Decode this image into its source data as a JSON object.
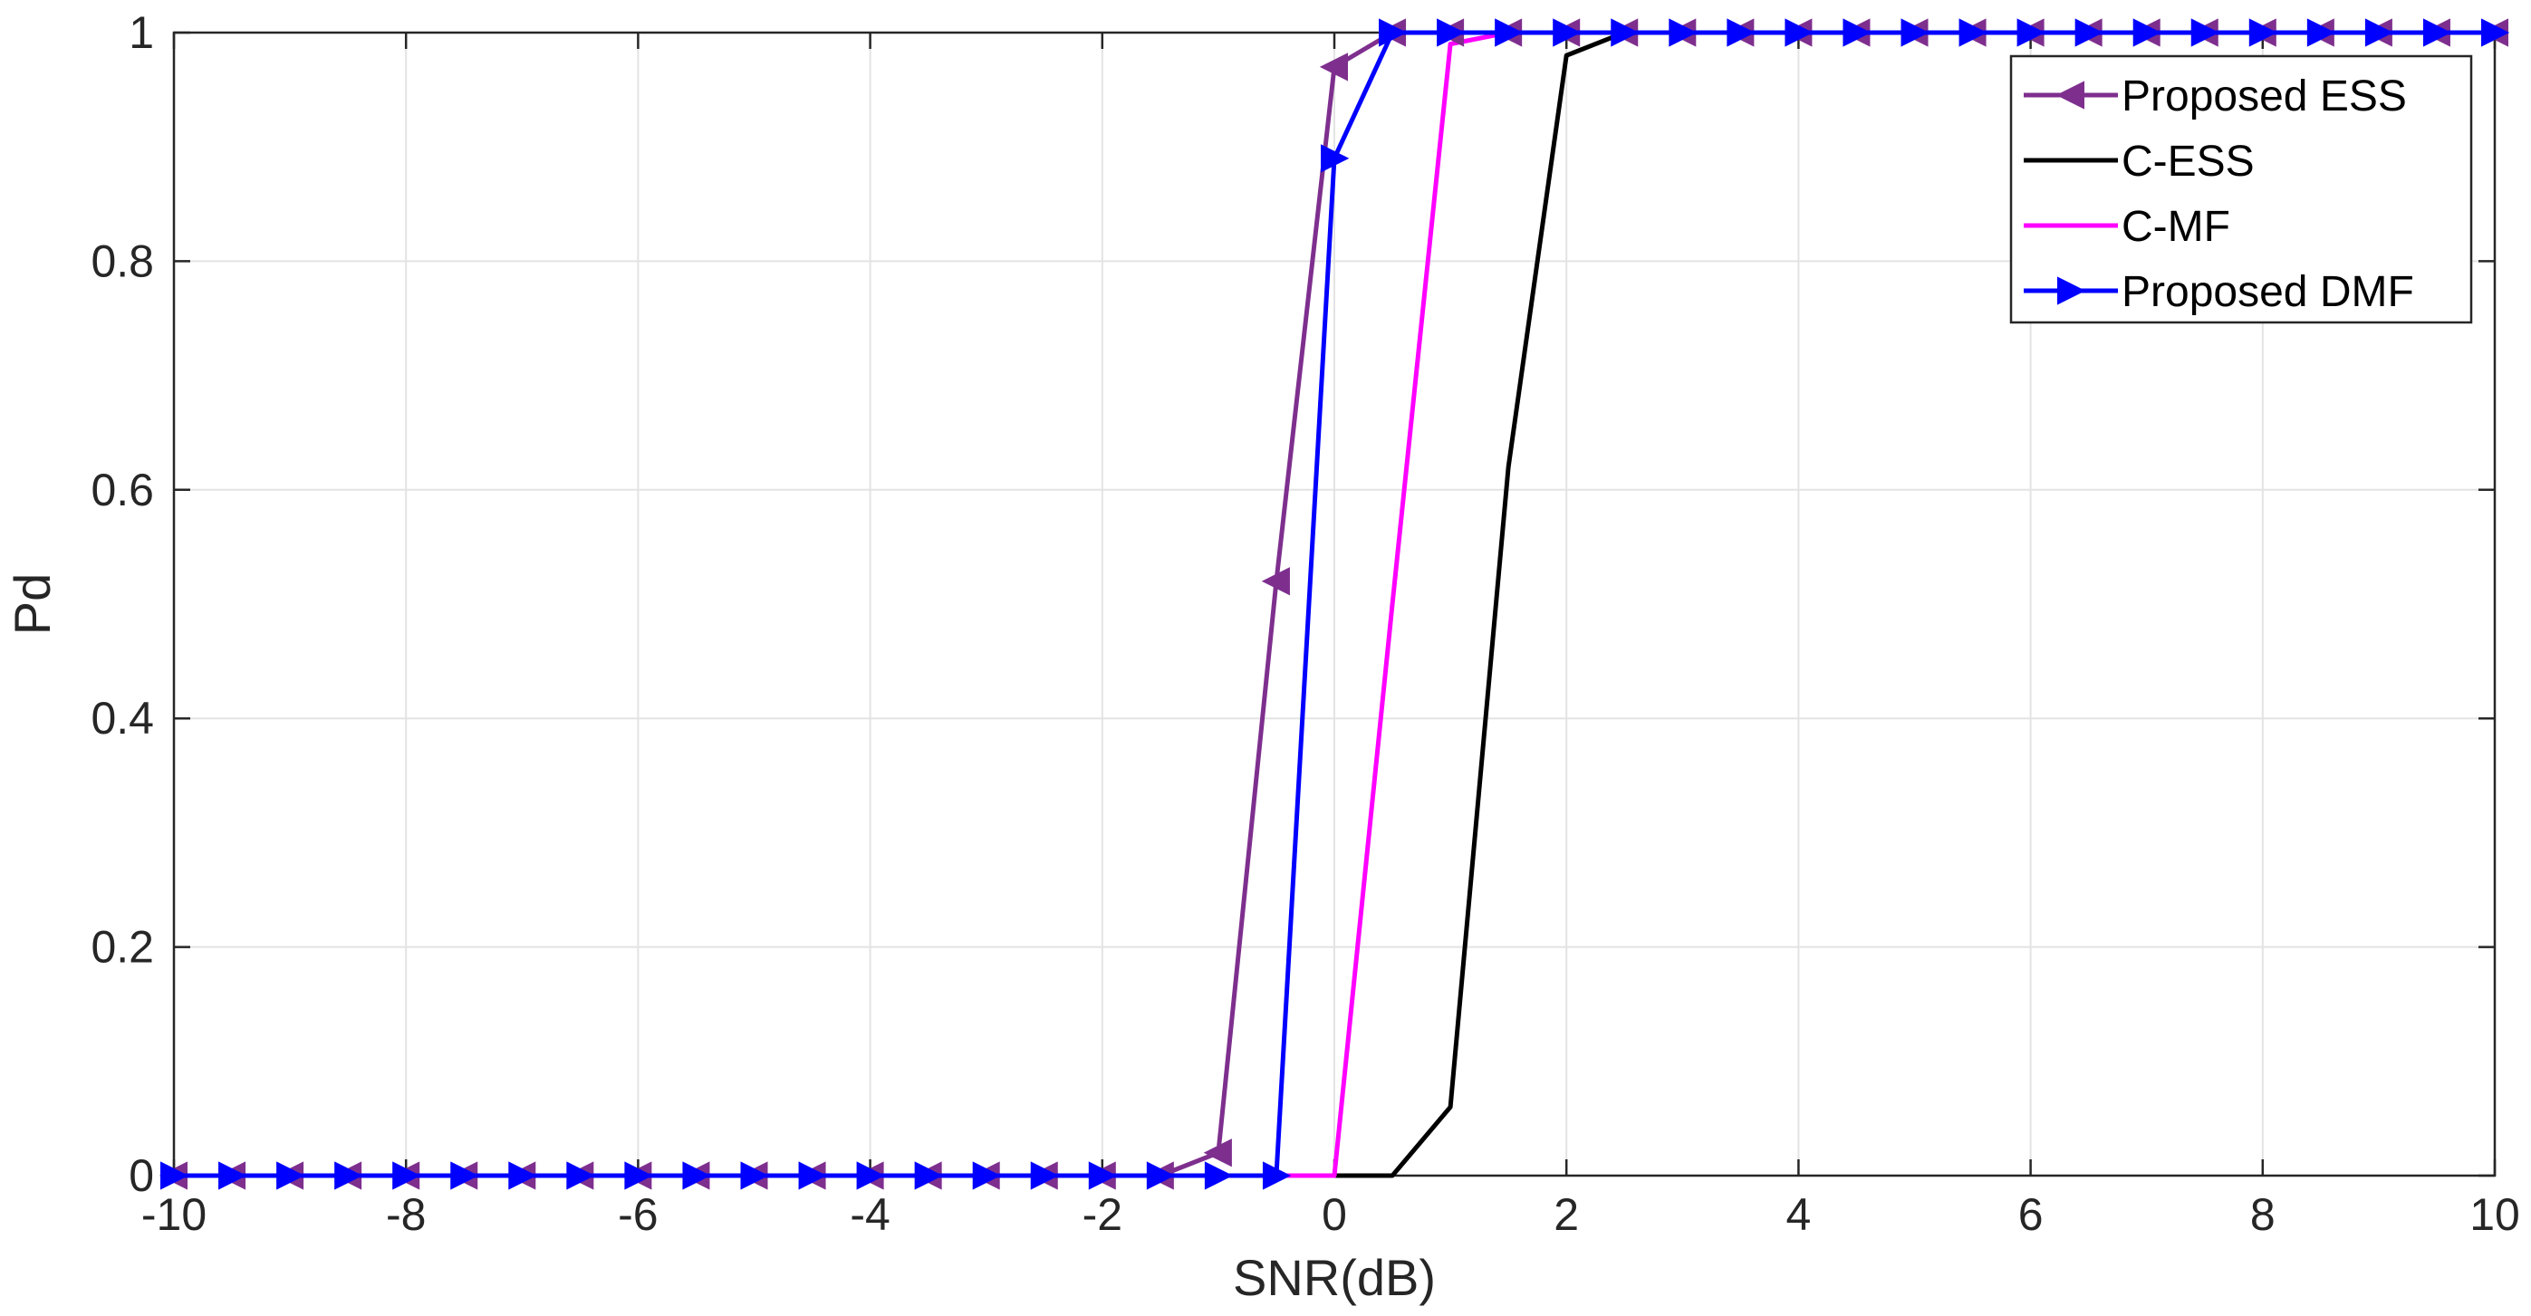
{
  "chart_data": {
    "type": "line",
    "title": "",
    "xlabel": "SNR(dB)",
    "ylabel": "Pd",
    "xlim": [
      -10,
      10
    ],
    "ylim": [
      0,
      1
    ],
    "xticks": [
      -10,
      -8,
      -6,
      -4,
      -2,
      0,
      2,
      4,
      6,
      8,
      10
    ],
    "yticks": [
      0,
      0.2,
      0.4,
      0.6,
      0.8,
      1
    ],
    "xtick_labels": [
      "-10",
      "-8",
      "-6",
      "-4",
      "-2",
      "0",
      "2",
      "4",
      "6",
      "8",
      "10"
    ],
    "ytick_labels": [
      "0",
      "0.2",
      "0.4",
      "0.6",
      "0.8",
      "1"
    ],
    "grid": true,
    "legend_position": "top-right",
    "x": [
      -10,
      -9.5,
      -9,
      -8.5,
      -8,
      -7.5,
      -7,
      -6.5,
      -6,
      -5.5,
      -5,
      -4.5,
      -4,
      -3.5,
      -3,
      -2.5,
      -2,
      -1.5,
      -1,
      -0.5,
      0,
      0.5,
      1,
      1.5,
      2,
      2.5,
      3,
      3.5,
      4,
      4.5,
      5,
      5.5,
      6,
      6.5,
      7,
      7.5,
      8,
      8.5,
      9,
      9.5,
      10
    ],
    "series": [
      {
        "name": "Proposed ESS",
        "color": "#7E2F8E",
        "marker": "triangle-left",
        "values": [
          0,
          0,
          0,
          0,
          0,
          0,
          0,
          0,
          0,
          0,
          0,
          0,
          0,
          0,
          0,
          0,
          0,
          0,
          0.02,
          0.52,
          0.97,
          1,
          1,
          1,
          1,
          1,
          1,
          1,
          1,
          1,
          1,
          1,
          1,
          1,
          1,
          1,
          1,
          1,
          1,
          1,
          1
        ]
      },
      {
        "name": "C-ESS",
        "color": "#000000",
        "marker": "none",
        "values": [
          0,
          0,
          0,
          0,
          0,
          0,
          0,
          0,
          0,
          0,
          0,
          0,
          0,
          0,
          0,
          0,
          0,
          0,
          0,
          0,
          0,
          0,
          0.06,
          0.62,
          0.98,
          1,
          1,
          1,
          1,
          1,
          1,
          1,
          1,
          1,
          1,
          1,
          1,
          1,
          1,
          1,
          1
        ]
      },
      {
        "name": "C-MF",
        "color": "#FF00FF",
        "marker": "none",
        "values": [
          0,
          0,
          0,
          0,
          0,
          0,
          0,
          0,
          0,
          0,
          0,
          0,
          0,
          0,
          0,
          0,
          0,
          0,
          0,
          0,
          0,
          0.5,
          0.99,
          1,
          1,
          1,
          1,
          1,
          1,
          1,
          1,
          1,
          1,
          1,
          1,
          1,
          1,
          1,
          1,
          1,
          1
        ]
      },
      {
        "name": "Proposed DMF",
        "color": "#0000FF",
        "marker": "triangle-right",
        "values": [
          0,
          0,
          0,
          0,
          0,
          0,
          0,
          0,
          0,
          0,
          0,
          0,
          0,
          0,
          0,
          0,
          0,
          0,
          0,
          0,
          0.89,
          1,
          1,
          1,
          1,
          1,
          1,
          1,
          1,
          1,
          1,
          1,
          1,
          1,
          1,
          1,
          1,
          1,
          1,
          1,
          1
        ]
      }
    ]
  }
}
